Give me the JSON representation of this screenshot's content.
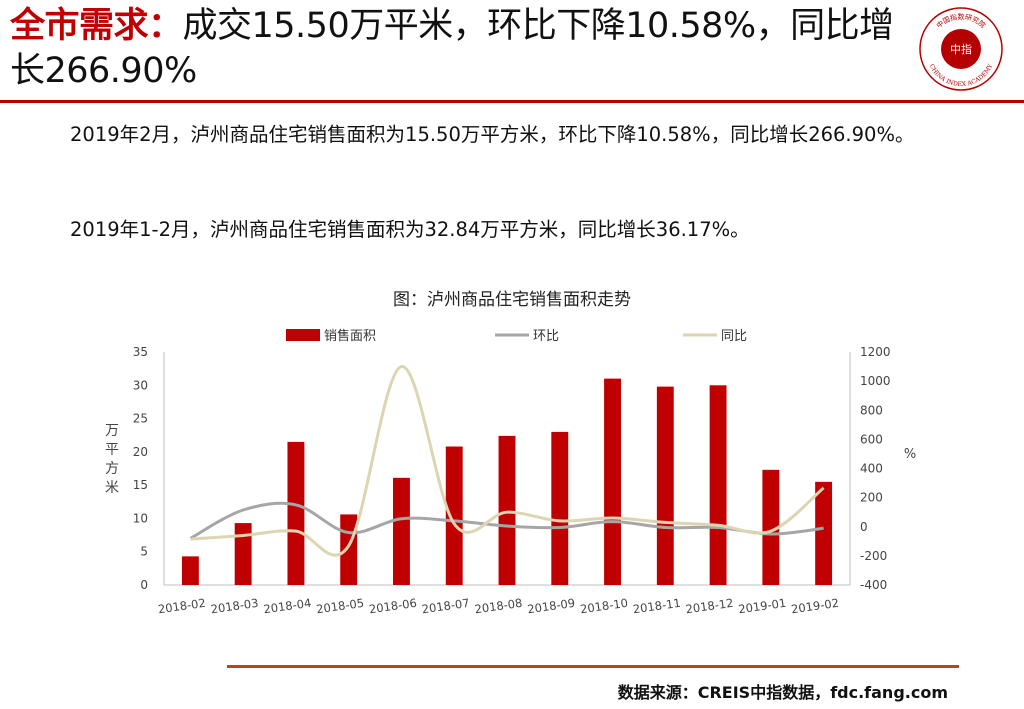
{
  "header": {
    "keyword": "全市需求：",
    "title_rest": "成交15.50万平米，环比下降10.58%，同比增长266.90%",
    "logo_center": "中指",
    "logo_ring_text": "CHINA INDEX ACADEMY",
    "logo_top_text": "中国指数研究院"
  },
  "body": {
    "paragraph1": "2019年2月，泸州商品住宅销售面积为15.50万平方米，环比下降10.58%，同比增长266.90%。",
    "paragraph2": "2019年1-2月，泸州商品住宅销售面积为32.84万平方米，同比增长36.17%。"
  },
  "colors": {
    "accent": "#c00000",
    "bar": "#c00000",
    "mom_line": "#a6a6a6",
    "yoy_line": "#ddd5b2",
    "source_rule": "#b5471f"
  },
  "chart_data": {
    "type": "bar",
    "title": "图：泸州商品住宅销售面积走势",
    "categories": [
      "2018-02",
      "2018-03",
      "2018-04",
      "2018-05",
      "2018-06",
      "2018-07",
      "2018-08",
      "2018-09",
      "2018-10",
      "2018-11",
      "2018-12",
      "2019-01",
      "2019-02"
    ],
    "series": [
      {
        "name": "销售面积",
        "type": "bar",
        "axis": "left",
        "values": [
          4.3,
          9.3,
          21.5,
          10.6,
          16.1,
          20.8,
          22.4,
          23.0,
          31.0,
          29.8,
          30.0,
          17.3,
          15.5
        ]
      },
      {
        "name": "环比",
        "type": "line",
        "axis": "right",
        "values": [
          -80,
          115,
          150,
          -40,
          55,
          40,
          5,
          -5,
          35,
          -5,
          -5,
          -50,
          -10.58
        ]
      },
      {
        "name": "同比",
        "type": "line",
        "axis": "right",
        "values": [
          -85,
          -60,
          -30,
          -130,
          1100,
          20,
          100,
          40,
          60,
          30,
          10,
          -30,
          266.9
        ]
      }
    ],
    "ylabel_left": "万平方米",
    "ylabel_right": "%",
    "ylim_left": [
      0,
      35
    ],
    "yticks_left": [
      0,
      5,
      10,
      15,
      20,
      25,
      30,
      35
    ],
    "ylim_right": [
      -400,
      1200
    ],
    "yticks_right": [
      -400,
      -200,
      0,
      200,
      400,
      600,
      800,
      1000,
      1200
    ],
    "legend_position": "top",
    "grid": false
  },
  "footer": {
    "source": "数据来源：CREIS中指数据，fdc.fang.com"
  }
}
